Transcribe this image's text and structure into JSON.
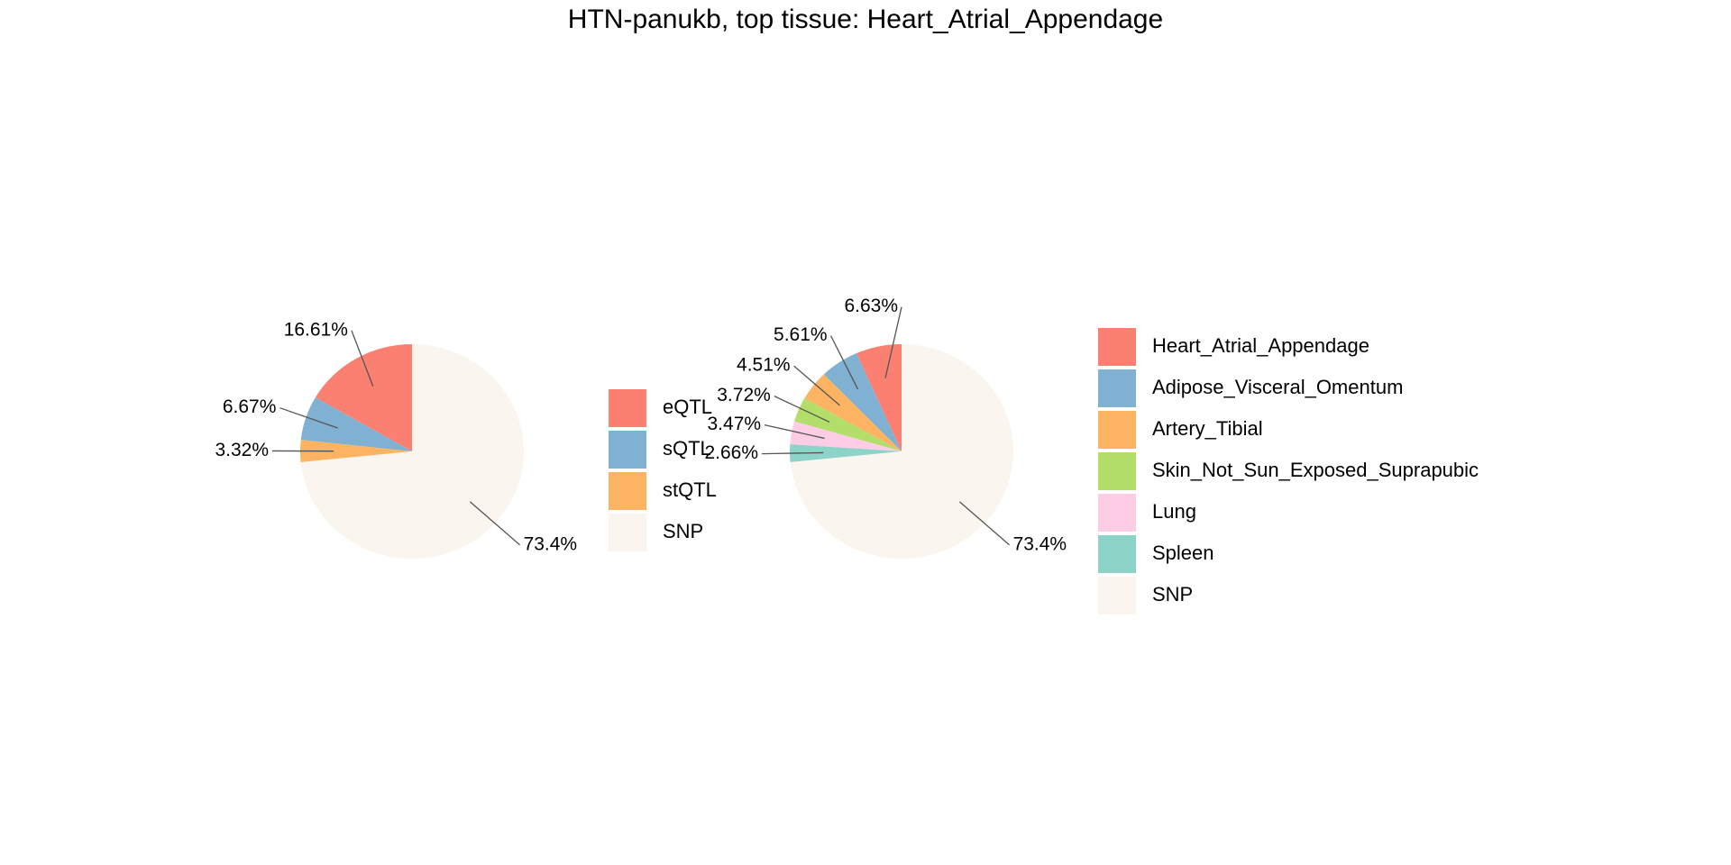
{
  "title": "HTN-panukb, top tissue: Heart_Atrial_Appendage",
  "chart_data": [
    {
      "type": "pie",
      "categories": [
        "eQTL",
        "sQTL",
        "stQTL",
        "SNP"
      ],
      "values": [
        16.61,
        6.67,
        3.32,
        73.4
      ],
      "value_labels": [
        "16.61%",
        "6.67%",
        "3.32%",
        "73.4%"
      ],
      "colors": [
        "#fb8072",
        "#80b1d3",
        "#fdb462",
        "#faf5ef"
      ]
    },
    {
      "type": "pie",
      "categories": [
        "Heart_Atrial_Appendage",
        "Adipose_Visceral_Omentum",
        "Artery_Tibial",
        "Skin_Not_Sun_Exposed_Suprapubic",
        "Lung",
        "Spleen",
        "SNP"
      ],
      "values": [
        6.63,
        5.61,
        4.51,
        3.72,
        3.47,
        2.66,
        73.4
      ],
      "value_labels": [
        "6.63%",
        "5.61%",
        "4.51%",
        "3.72%",
        "3.47%",
        "2.66%",
        "73.4%"
      ],
      "colors": [
        "#fb8072",
        "#80b1d3",
        "#fdb462",
        "#b3de69",
        "#fccde5",
        "#8dd3c7",
        "#faf5ef"
      ]
    }
  ]
}
